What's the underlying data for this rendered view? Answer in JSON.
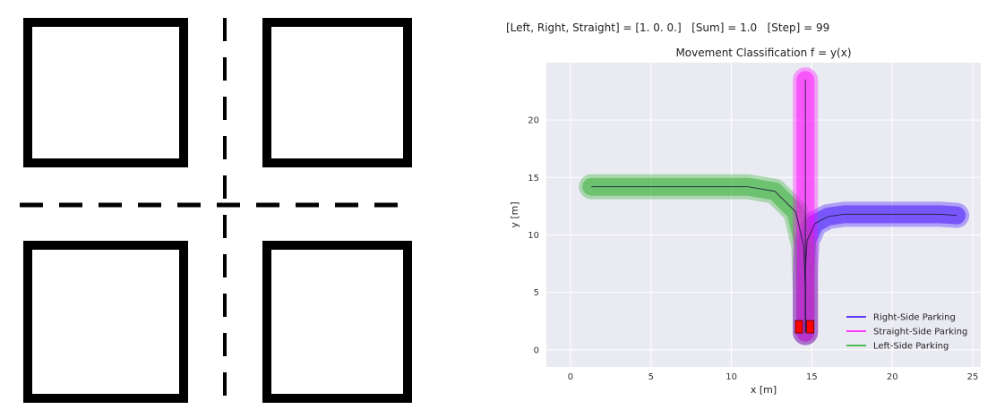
{
  "status": {
    "text": "[Left, Right, Straight] = [1. 0. 0.]   [Sum] = 1.0   [Step] = 99"
  },
  "chart_data": {
    "type": "line",
    "title": "Movement Classification f = y(x)",
    "xlabel": "x [m]",
    "ylabel": "y [m]",
    "xlim": [
      -1.5,
      25.5
    ],
    "ylim": [
      -1.5,
      25
    ],
    "xticks": [
      0,
      5,
      10,
      15,
      20,
      25
    ],
    "yticks": [
      0,
      5,
      10,
      15,
      20
    ],
    "grid": true,
    "legend_position": "lower-right",
    "series": [
      {
        "name": "Right-Side Parking",
        "color": "#3300ff",
        "x": [
          14.6,
          14.6,
          14.6,
          14.7,
          15.2,
          16.0,
          17.0,
          18.5,
          20.0,
          21.5,
          23.0,
          24.0
        ],
        "y": [
          1.5,
          4.0,
          7.0,
          9.5,
          11.0,
          11.6,
          11.8,
          11.8,
          11.8,
          11.8,
          11.8,
          11.7
        ]
      },
      {
        "name": "Straight-Side Parking",
        "color": "#ff00ff",
        "x": [
          14.6,
          14.6,
          14.6,
          14.6,
          14.6,
          14.6,
          14.6,
          14.6,
          14.6
        ],
        "y": [
          1.5,
          4.0,
          7.0,
          10.0,
          13.0,
          16.0,
          19.0,
          21.5,
          23.5
        ]
      },
      {
        "name": "Left-Side Parking",
        "color": "#22aa22",
        "x": [
          14.6,
          14.6,
          14.5,
          14.0,
          12.7,
          11.0,
          9.0,
          7.0,
          5.0,
          3.0,
          1.3
        ],
        "y": [
          1.5,
          5.0,
          9.0,
          12.0,
          13.8,
          14.2,
          14.2,
          14.2,
          14.2,
          14.2,
          14.2
        ]
      }
    ],
    "markers": [
      {
        "name": "vehicle-rear",
        "x": 14.2,
        "y": 2.0,
        "color": "#ff0000"
      },
      {
        "name": "vehicle-front",
        "x": 14.9,
        "y": 2.0,
        "color": "#ff0000"
      }
    ]
  }
}
